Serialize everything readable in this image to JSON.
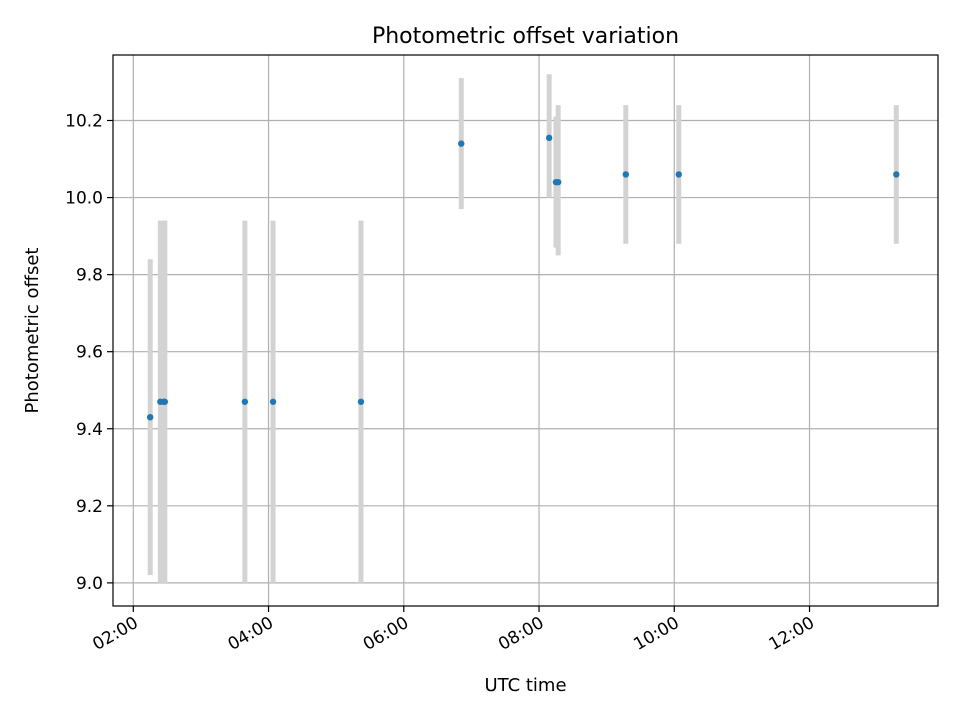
{
  "chart_data": {
    "type": "scatter",
    "title": "Photometric offset variation",
    "xlabel": "UTC time",
    "ylabel": "Photometric offset",
    "xlim": [
      "01:42",
      "13:54"
    ],
    "ylim": [
      8.94,
      10.37
    ],
    "x_ticks": [
      "02:00",
      "04:00",
      "06:00",
      "08:00",
      "10:00",
      "12:00"
    ],
    "y_ticks": [
      "9.0",
      "9.2",
      "9.4",
      "9.6",
      "9.8",
      "10.0",
      "10.2"
    ],
    "grid": true,
    "colors": {
      "point": "#1f77b4",
      "errorbar": "#d3d3d3",
      "grid": "#b0b0b0"
    },
    "points": [
      {
        "x": "02:15",
        "y": 9.43,
        "ylow": 9.02,
        "yhigh": 9.84
      },
      {
        "x": "02:24",
        "y": 9.47,
        "ylow": 9.0,
        "yhigh": 9.94
      },
      {
        "x": "02:27",
        "y": 9.47,
        "ylow": 9.0,
        "yhigh": 9.94
      },
      {
        "x": "02:28",
        "y": 9.47,
        "ylow": 9.0,
        "yhigh": 9.94
      },
      {
        "x": "03:39",
        "y": 9.47,
        "ylow": 9.0,
        "yhigh": 9.94
      },
      {
        "x": "04:04",
        "y": 9.47,
        "ylow": 9.0,
        "yhigh": 9.94
      },
      {
        "x": "05:22",
        "y": 9.47,
        "ylow": 9.0,
        "yhigh": 9.94
      },
      {
        "x": "06:51",
        "y": 10.14,
        "ylow": 9.97,
        "yhigh": 10.31
      },
      {
        "x": "08:09",
        "y": 10.155,
        "ylow": 10.0,
        "yhigh": 10.32
      },
      {
        "x": "08:15",
        "y": 10.04,
        "ylow": 9.87,
        "yhigh": 10.21
      },
      {
        "x": "08:17",
        "y": 10.04,
        "ylow": 9.85,
        "yhigh": 10.24
      },
      {
        "x": "09:17",
        "y": 10.06,
        "ylow": 9.88,
        "yhigh": 10.24
      },
      {
        "x": "10:04",
        "y": 10.06,
        "ylow": 9.88,
        "yhigh": 10.24
      },
      {
        "x": "13:17",
        "y": 10.06,
        "ylow": 9.88,
        "yhigh": 10.24
      }
    ]
  }
}
